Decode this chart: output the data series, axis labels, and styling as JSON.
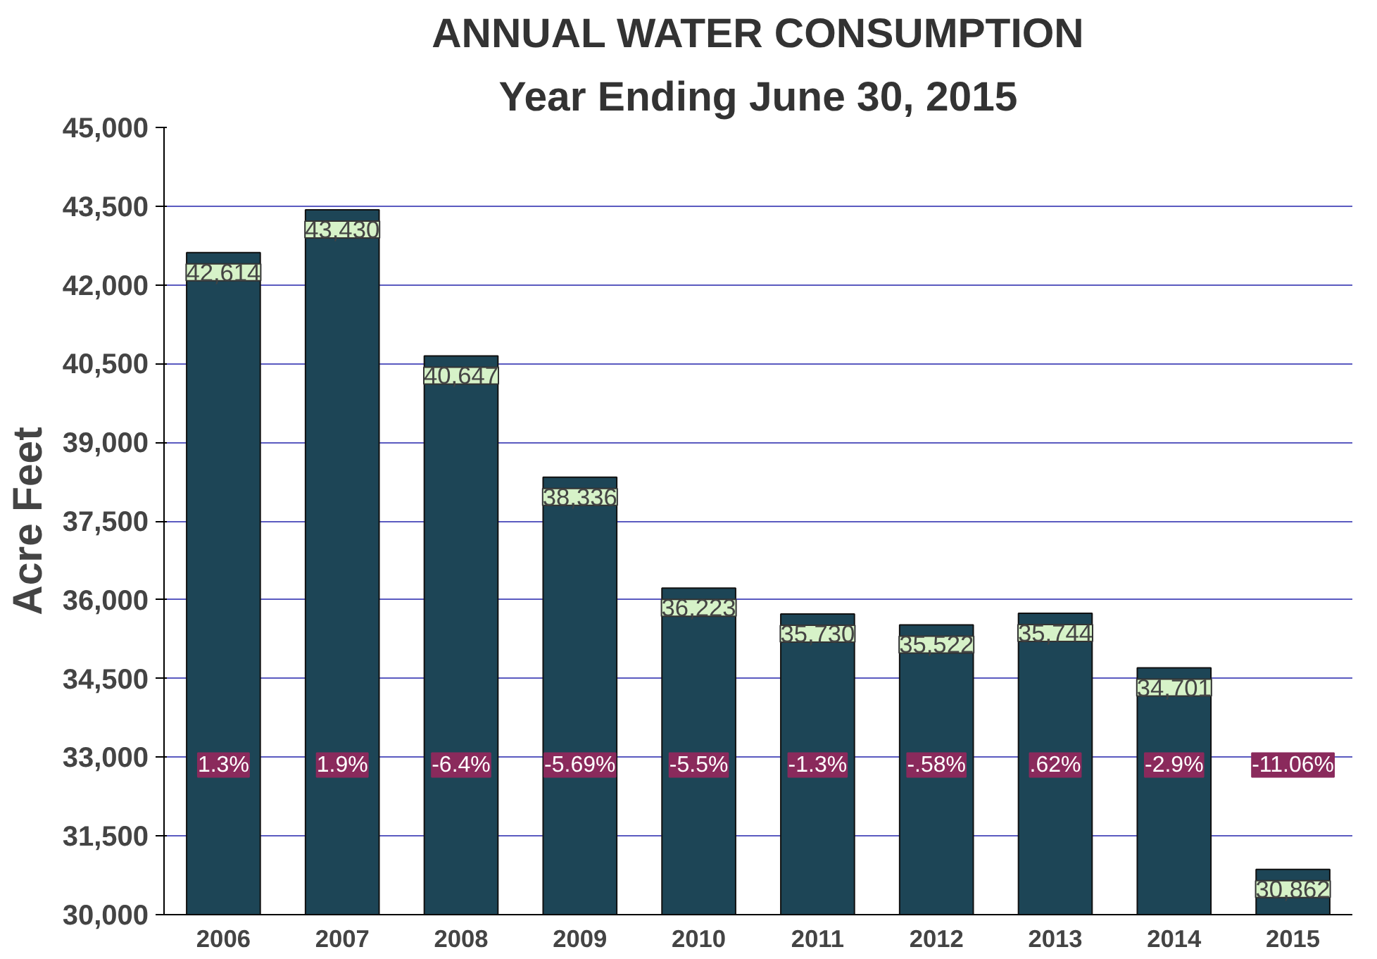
{
  "chart_data": {
    "type": "bar",
    "title": "ANNUAL WATER CONSUMPTION",
    "subtitle": "Year Ending June 30, 2015",
    "ylabel": "Acre Feet",
    "categories": [
      "2006",
      "2007",
      "2008",
      "2009",
      "2010",
      "2011",
      "2012",
      "2013",
      "2014",
      "2015"
    ],
    "values": [
      42614,
      43430,
      40647,
      38336,
      36223,
      35730,
      35522,
      35744,
      34701,
      30862
    ],
    "color": "#1d4556",
    "value_labels": [
      "42,614",
      "43,430",
      "40,647",
      "38,336",
      "36,223",
      "35,730",
      "35,522",
      "35,744",
      "34,701",
      "30,862"
    ],
    "ylim": [
      30000,
      45000
    ],
    "yticks": [
      {
        "value": 30000,
        "label": "30,000"
      },
      {
        "value": 31500,
        "label": "31,500"
      },
      {
        "value": 33000,
        "label": "33,000"
      },
      {
        "value": 34500,
        "label": "34,500"
      },
      {
        "value": 36000,
        "label": "36,000"
      },
      {
        "value": 37500,
        "label": "37,500"
      },
      {
        "value": 39000,
        "label": "39,000"
      },
      {
        "value": 40500,
        "label": "40,500"
      },
      {
        "value": 42000,
        "label": "42,000"
      },
      {
        "value": 43500,
        "label": "43,500"
      },
      {
        "value": 45000,
        "label": "45,000"
      }
    ],
    "grid": "y",
    "annotations": [
      "1.3%",
      "1.9%",
      "-6.4%",
      "-5.69%",
      "-5.5%",
      "-1.3%",
      "-.58%",
      ".62%",
      "-2.9%",
      "-11.06%"
    ]
  }
}
